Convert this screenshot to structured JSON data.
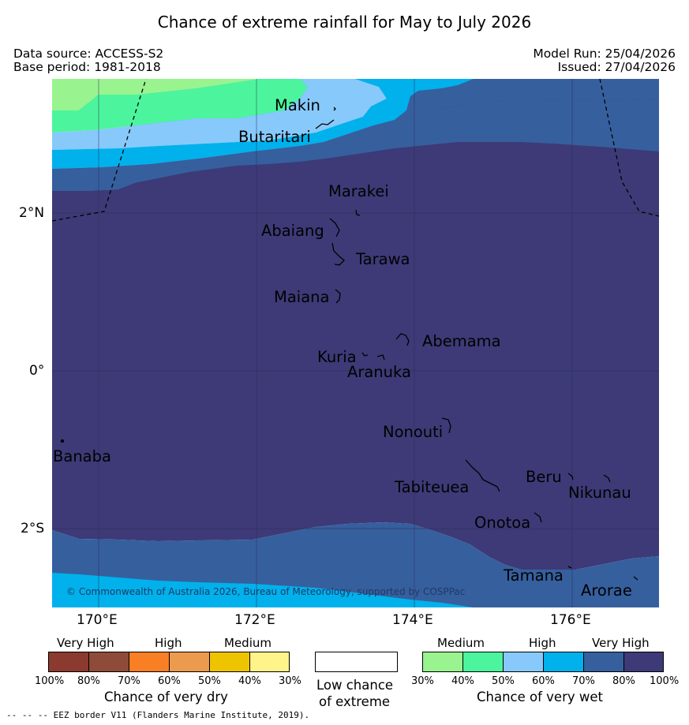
{
  "title": "Chance of extreme rainfall for May to July 2026",
  "meta": {
    "data_source": "Data source: ACCESS-S2",
    "base_period": "Base period: 1981-2018",
    "model_run": "Model Run: 25/04/2026",
    "issued": "Issued: 27/04/2026"
  },
  "axes": {
    "lat_ticks": [
      "2°N",
      "0°",
      "2°S"
    ],
    "lon_ticks": [
      "170°E",
      "172°E",
      "174°E",
      "176°E"
    ]
  },
  "islands": [
    {
      "name": "Makin"
    },
    {
      "name": "Butaritari"
    },
    {
      "name": "Marakei"
    },
    {
      "name": "Abaiang"
    },
    {
      "name": "Tarawa"
    },
    {
      "name": "Maiana"
    },
    {
      "name": "Abemama"
    },
    {
      "name": "Kuria"
    },
    {
      "name": "Aranuka"
    },
    {
      "name": "Nonouti"
    },
    {
      "name": "Banaba"
    },
    {
      "name": "Tabiteuea"
    },
    {
      "name": "Beru"
    },
    {
      "name": "Nikunau"
    },
    {
      "name": "Onotoa"
    },
    {
      "name": "Tamana"
    },
    {
      "name": "Arorae"
    }
  ],
  "copyright": "© Commonwealth of Australia 2026, Bureau of Meteorology, supported by COSPPac",
  "legend": {
    "dry": {
      "groups": [
        "Very High",
        "High",
        "Medium"
      ],
      "colors": [
        "#8b3a2f",
        "#8e4b3a",
        "#f97f24",
        "#ec9a4e",
        "#eec400",
        "#fff48a"
      ],
      "ticks": [
        "100%",
        "80%",
        "70%",
        "60%",
        "50%",
        "40%",
        "30%"
      ],
      "title": "Chance of very dry"
    },
    "neutral": {
      "line1": "Low chance",
      "line2": "of extreme",
      "color": "#ffffff"
    },
    "wet": {
      "groups": [
        "Medium",
        "High",
        "Very High"
      ],
      "colors": [
        "#99f38f",
        "#4cf59d",
        "#87c9fb",
        "#00b1ec",
        "#365f9e",
        "#3d3a77"
      ],
      "ticks": [
        "30%",
        "40%",
        "50%",
        "60%",
        "70%",
        "80%",
        "100%"
      ],
      "title": "Chance of very wet"
    }
  },
  "footer": "-- -- -- EEZ border V11 (Flanders Marine Institute, 2019)."
}
